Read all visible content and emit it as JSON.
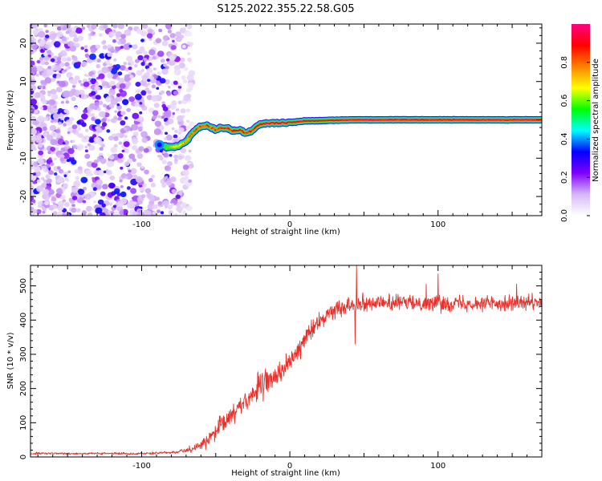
{
  "title": "S125.2022.355.22.58.G05",
  "chart_data": [
    {
      "type": "heatmap",
      "xlabel": "Height of straight line (km)",
      "ylabel": "Frequency (Hz)",
      "xlim": [
        -175,
        170
      ],
      "ylim": [
        -25,
        25
      ],
      "x_ticks": [
        -100,
        0,
        100
      ],
      "x_tick_labels": [
        "-100",
        "0",
        "100"
      ],
      "y_ticks": [
        -20,
        -10,
        0,
        10,
        20
      ],
      "y_tick_labels": [
        "-20",
        "-10",
        "0",
        "10",
        "20"
      ],
      "grid": false,
      "noise_region": {
        "x_from": -175,
        "x_to": -70,
        "amplitude_max": 0.35
      },
      "ridge": {
        "x": [
          -88,
          -82,
          -76,
          -70,
          -66,
          -62,
          -58,
          -54,
          -50,
          -46,
          -42,
          -38,
          -34,
          -30,
          -26,
          -22,
          -18,
          -10,
          0,
          10,
          20,
          30,
          40,
          60,
          80,
          100,
          120,
          140,
          160,
          170
        ],
        "frequency": [
          -6.5,
          -7.2,
          -7.0,
          -5.5,
          -3.5,
          -2.0,
          -1.5,
          -1.8,
          -2.5,
          -2.0,
          -2.2,
          -3.0,
          -2.5,
          -3.5,
          -3.0,
          -1.5,
          -1.0,
          -0.8,
          -0.7,
          -0.3,
          -0.2,
          -0.1,
          0.0,
          0.0,
          0.0,
          0.0,
          0.0,
          0.0,
          0.0,
          0.0
        ],
        "amplitude": [
          0.5,
          0.6,
          0.7,
          0.8,
          0.85,
          0.9,
          0.9,
          0.9,
          0.9,
          0.95,
          0.95,
          0.95,
          0.95,
          0.95,
          0.95,
          0.95,
          1.0,
          1.0,
          1.0,
          1.0,
          1.0,
          1.0,
          1.0,
          1.0,
          1.0,
          1.0,
          1.0,
          1.0,
          1.0,
          1.0
        ]
      },
      "colorbar": {
        "label": "Normalized spectral amplitude",
        "range": [
          0,
          1
        ],
        "ticks": [
          0.0,
          0.2,
          0.4,
          0.6,
          0.8
        ],
        "tick_labels": [
          "0.0",
          "0.2",
          "0.4",
          "0.6",
          "0.8"
        ],
        "colors": [
          "#ffffff",
          "#d6b8f5",
          "#8000ff",
          "#0000ff",
          "#00ffff",
          "#00ff00",
          "#ffff00",
          "#ff8000",
          "#ff0000",
          "#ff0080"
        ]
      }
    },
    {
      "type": "line",
      "xlabel": "Height of straight line (km)",
      "ylabel": "SNR (10 * v/v)",
      "xlim": [
        -175,
        170
      ],
      "ylim": [
        0,
        560
      ],
      "x_ticks": [
        -100,
        0,
        100
      ],
      "x_tick_labels": [
        "-100",
        "0",
        "100"
      ],
      "y_ticks": [
        0,
        100,
        200,
        300,
        400,
        500
      ],
      "y_tick_labels": [
        "0",
        "100",
        "200",
        "300",
        "400",
        "500"
      ],
      "grid": false,
      "color": "#e8312a",
      "series": [
        {
          "x": [
            -175,
            -160,
            -140,
            -120,
            -100,
            -90,
            -80,
            -75,
            -70,
            -65,
            -60,
            -55,
            -50,
            -45,
            -40,
            -35,
            -30,
            -25,
            -20,
            -15,
            -10,
            -5,
            0,
            5,
            10,
            15,
            20,
            25,
            30,
            35,
            40,
            45,
            50,
            60,
            70,
            80,
            90,
            100,
            110,
            120,
            130,
            140,
            150,
            160,
            170
          ],
          "y": [
            10,
            10,
            10,
            10,
            10,
            11,
            13,
            16,
            20,
            25,
            35,
            50,
            70,
            95,
            120,
            145,
            165,
            185,
            205,
            220,
            235,
            255,
            275,
            305,
            345,
            375,
            395,
            415,
            430,
            440,
            445,
            448,
            450,
            450,
            450,
            450,
            450,
            450,
            450,
            450,
            450,
            450,
            450,
            450,
            450
          ],
          "noise": [
            4,
            4,
            4,
            4,
            4,
            5,
            6,
            8,
            10,
            12,
            16,
            25,
            35,
            45,
            50,
            50,
            50,
            50,
            50,
            45,
            45,
            45,
            40,
            38,
            35,
            35,
            32,
            32,
            30,
            30,
            30,
            30,
            30,
            30,
            30,
            30,
            30,
            30,
            30,
            30,
            30,
            30,
            30,
            30,
            30
          ],
          "spikes": [
            {
              "x": 45,
              "y": 560
            },
            {
              "x": 100,
              "y": 535
            },
            {
              "x": 92,
              "y": 505
            },
            {
              "x": 153,
              "y": 505
            },
            {
              "x": 44,
              "y": 330
            }
          ]
        }
      ]
    }
  ]
}
